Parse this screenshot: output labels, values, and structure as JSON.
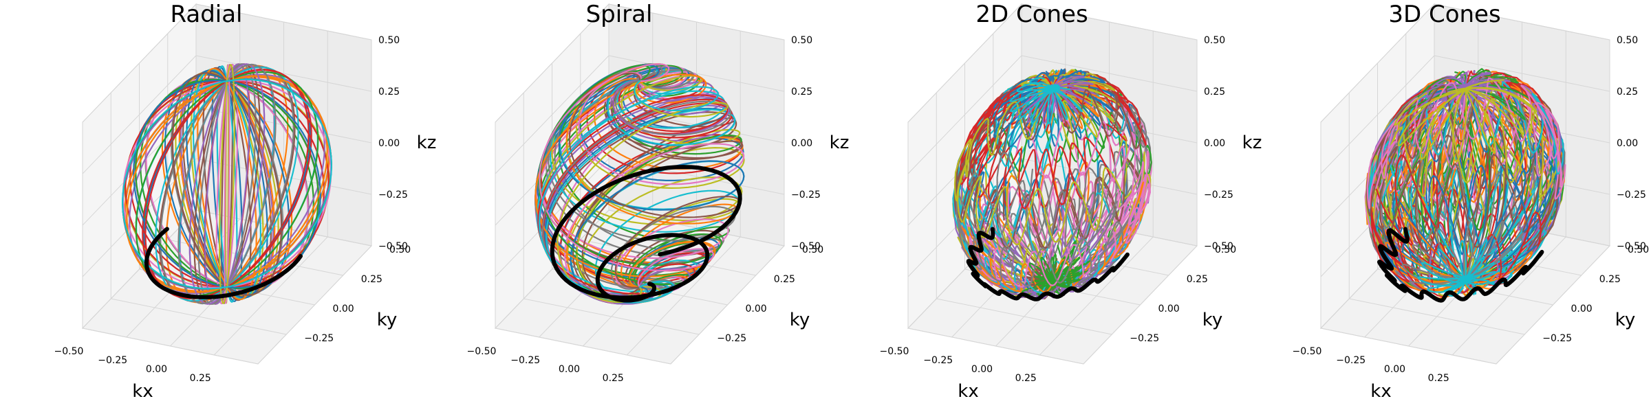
{
  "figure": {
    "colors": [
      "#1f77b4",
      "#ff7f0e",
      "#2ca02c",
      "#d62728",
      "#9467bd",
      "#8c564b",
      "#e377c2",
      "#7f7f7f",
      "#bcbd22",
      "#17becf"
    ],
    "highlight_color": "#000000"
  },
  "chart_data": [
    {
      "type": "line3d",
      "title": "Radial",
      "trajectory": "radial",
      "xlabel": "kx",
      "ylabel": "ky",
      "zlabel": "kz",
      "xlim": [
        -0.5,
        0.5
      ],
      "ylim": [
        -0.5,
        0.5
      ],
      "zlim": [
        -0.5,
        0.5
      ],
      "xticks": [
        "−0.50",
        "−0.25",
        "0.00",
        "0.25"
      ],
      "yticks": [
        "−0.25",
        "0.00",
        "0.25",
        "0.50"
      ],
      "zticks": [
        "−0.50",
        "−0.25",
        "0.00",
        "0.25",
        "0.50"
      ],
      "sphere_radius": 0.5,
      "highlight": "lower semicircle, z ≈ −0.25 to −0.5",
      "grid": true
    },
    {
      "type": "line3d",
      "title": "Spiral",
      "trajectory": "spiral",
      "xlabel": "",
      "ylabel": "ky",
      "zlabel": "kz",
      "xlim": [
        -0.5,
        0.5
      ],
      "ylim": [
        -0.5,
        0.5
      ],
      "zlim": [
        -0.5,
        0.5
      ],
      "xticks": [
        "−0.50",
        "−0.25",
        "0.00",
        "0.25"
      ],
      "yticks": [
        "−0.25",
        "0.00",
        "0.25",
        "0.50"
      ],
      "zticks": [
        "−0.50",
        "−0.25",
        "0.00",
        "0.25",
        "0.50"
      ],
      "sphere_radius": 0.5,
      "highlight": "spiral winding toward the bottom pole",
      "grid": true
    },
    {
      "type": "line3d",
      "title": "2D Cones",
      "trajectory": "cones2d",
      "xlabel": "kx",
      "ylabel": "ky",
      "zlabel": "kz",
      "xlim": [
        -0.5,
        0.5
      ],
      "ylim": [
        -0.5,
        0.5
      ],
      "zlim": [
        -0.5,
        0.5
      ],
      "xticks": [
        "−0.50",
        "−0.25",
        "0.00",
        "0.25"
      ],
      "yticks": [
        "−0.25",
        "0.00",
        "0.25",
        "0.50"
      ],
      "zticks": [
        "−0.50",
        "−0.25",
        "0.00",
        "0.25",
        "0.50"
      ],
      "sphere_radius": 0.5,
      "highlight": "wavy lower semicircle",
      "grid": true
    },
    {
      "type": "line3d",
      "title": "3D Cones",
      "trajectory": "cones3d",
      "xlabel": "kx",
      "ylabel": "ky",
      "zlabel": "kz",
      "xlim": [
        -0.5,
        0.5
      ],
      "ylim": [
        -0.5,
        0.5
      ],
      "zlim": [
        -0.5,
        0.5
      ],
      "xticks": [
        "−0.50",
        "−0.25",
        "0.00",
        "0.25"
      ],
      "yticks": [
        "−0.25",
        "0.00",
        "0.25",
        "0.50"
      ],
      "zticks": [
        "−0.50",
        "−0.25",
        "0.00",
        "0.25",
        "0.50"
      ],
      "sphere_radius": 0.5,
      "highlight": "strongly wavy lower semicircle",
      "grid": true
    }
  ]
}
